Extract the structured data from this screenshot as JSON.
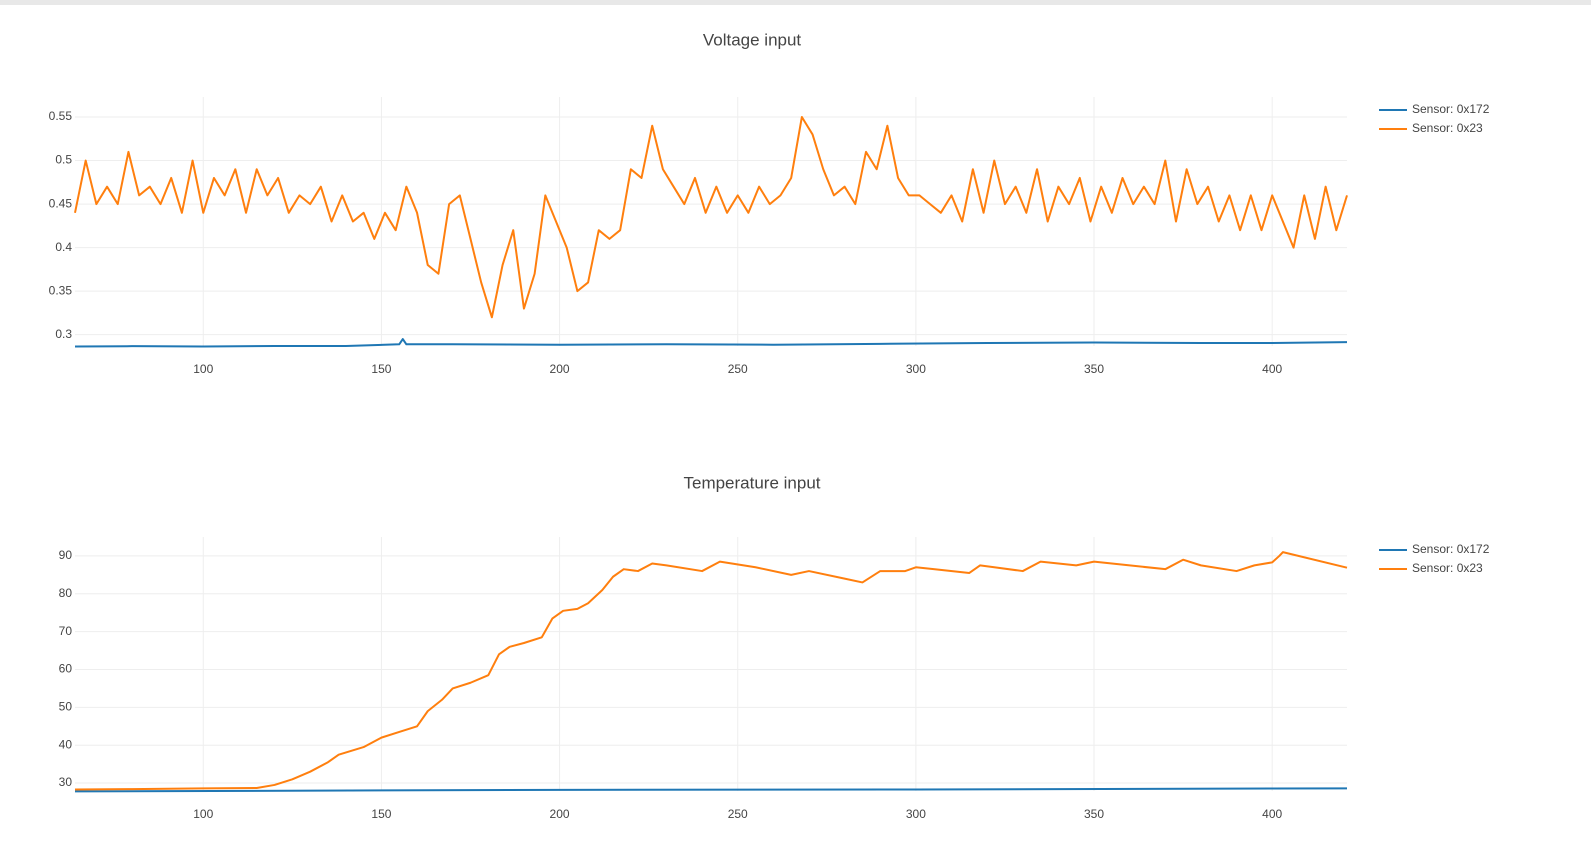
{
  "chart_data": [
    {
      "type": "line",
      "title": "Voltage input",
      "grid": true,
      "legend": "top-right",
      "xlim": [
        64,
        421
      ],
      "xticks": [
        100,
        150,
        200,
        250,
        300,
        350,
        400
      ],
      "ylim": [
        0.287,
        0.573
      ],
      "yticks": [
        0.3,
        0.35,
        0.4,
        0.45,
        0.5,
        0.55
      ],
      "series": [
        {
          "name": "Sensor: 0x172",
          "color": "#1f77b4",
          "x": [
            64,
            80,
            100,
            120,
            140,
            155,
            156,
            157,
            170,
            200,
            230,
            260,
            290,
            320,
            350,
            380,
            400,
            421
          ],
          "values": [
            0.2865,
            0.2868,
            0.2865,
            0.287,
            0.287,
            0.289,
            0.295,
            0.289,
            0.289,
            0.2885,
            0.289,
            0.2885,
            0.2895,
            0.2905,
            0.291,
            0.2905,
            0.2905,
            0.2915
          ]
        },
        {
          "name": "Sensor: 0x23",
          "color": "#ff7f0e",
          "x": [
            64,
            67,
            70,
            73,
            76,
            79,
            82,
            85,
            88,
            91,
            94,
            97,
            100,
            103,
            106,
            109,
            112,
            115,
            118,
            121,
            124,
            127,
            130,
            133,
            136,
            139,
            142,
            145,
            148,
            151,
            154,
            157,
            160,
            163,
            166,
            169,
            172,
            175,
            178,
            181,
            184,
            187,
            190,
            193,
            196,
            199,
            202,
            205,
            208,
            211,
            214,
            217,
            220,
            223,
            226,
            229,
            232,
            235,
            238,
            241,
            244,
            247,
            250,
            253,
            256,
            259,
            262,
            265,
            268,
            271,
            274,
            277,
            280,
            283,
            286,
            289,
            292,
            295,
            298,
            301,
            304,
            307,
            310,
            313,
            316,
            319,
            322,
            325,
            328,
            331,
            334,
            337,
            340,
            343,
            346,
            349,
            352,
            355,
            358,
            361,
            364,
            367,
            370,
            373,
            376,
            379,
            382,
            385,
            388,
            391,
            394,
            397,
            400,
            403,
            406,
            409,
            412,
            415,
            418,
            421
          ],
          "values": [
            0.44,
            0.5,
            0.45,
            0.47,
            0.45,
            0.51,
            0.46,
            0.47,
            0.45,
            0.48,
            0.44,
            0.5,
            0.44,
            0.48,
            0.46,
            0.49,
            0.44,
            0.49,
            0.46,
            0.48,
            0.44,
            0.46,
            0.45,
            0.47,
            0.43,
            0.46,
            0.43,
            0.44,
            0.41,
            0.44,
            0.42,
            0.47,
            0.44,
            0.38,
            0.37,
            0.45,
            0.46,
            0.41,
            0.36,
            0.32,
            0.38,
            0.42,
            0.33,
            0.37,
            0.46,
            0.43,
            0.4,
            0.35,
            0.36,
            0.42,
            0.41,
            0.42,
            0.49,
            0.48,
            0.54,
            0.49,
            0.47,
            0.45,
            0.48,
            0.44,
            0.47,
            0.44,
            0.46,
            0.44,
            0.47,
            0.45,
            0.46,
            0.48,
            0.55,
            0.53,
            0.49,
            0.46,
            0.47,
            0.45,
            0.51,
            0.49,
            0.54,
            0.48,
            0.46,
            0.46,
            0.45,
            0.44,
            0.46,
            0.43,
            0.49,
            0.44,
            0.5,
            0.45,
            0.47,
            0.44,
            0.49,
            0.43,
            0.47,
            0.45,
            0.48,
            0.43,
            0.47,
            0.44,
            0.48,
            0.45,
            0.47,
            0.45,
            0.5,
            0.43,
            0.49,
            0.45,
            0.47,
            0.43,
            0.46,
            0.42,
            0.46,
            0.42,
            0.46,
            0.43,
            0.4,
            0.46,
            0.41,
            0.47,
            0.42,
            0.46
          ]
        }
      ]
    },
    {
      "type": "line",
      "title": "Temperature input",
      "grid": true,
      "legend": "top-right",
      "xlim": [
        64,
        421
      ],
      "xticks": [
        100,
        150,
        200,
        250,
        300,
        350,
        400
      ],
      "ylim": [
        27.9,
        95
      ],
      "yticks": [
        30,
        40,
        50,
        60,
        70,
        80,
        90
      ],
      "series": [
        {
          "name": "Sensor: 0x172",
          "color": "#1f77b4",
          "x": [
            64,
            200,
            300,
            421
          ],
          "values": [
            27.8,
            28.2,
            28.3,
            28.6
          ]
        },
        {
          "name": "Sensor: 0x23",
          "color": "#ff7f0e",
          "x": [
            64,
            80,
            100,
            115,
            120,
            125,
            130,
            135,
            138,
            145,
            150,
            155,
            160,
            163,
            167,
            170,
            175,
            180,
            183,
            186,
            190,
            195,
            198,
            201,
            205,
            208,
            212,
            215,
            218,
            222,
            226,
            230,
            240,
            245,
            255,
            265,
            270,
            280,
            285,
            290,
            297,
            300,
            305,
            315,
            318,
            322,
            330,
            335,
            345,
            350,
            360,
            370,
            375,
            380,
            390,
            395,
            400,
            402,
            403,
            421
          ],
          "values": [
            28.3,
            28.4,
            28.6,
            28.7,
            29.5,
            31,
            33,
            35.5,
            37.5,
            39.5,
            42,
            43.5,
            45,
            49,
            52,
            55,
            56.5,
            58.5,
            64,
            66,
            67,
            68.5,
            73.5,
            75.5,
            76,
            77.5,
            81,
            84.5,
            86.5,
            86,
            88,
            87.5,
            86,
            88.5,
            87,
            85,
            86,
            84,
            83,
            86,
            86,
            87,
            86.5,
            85.5,
            87.5,
            87,
            86,
            88.5,
            87.5,
            88.5,
            87.5,
            86.5,
            89,
            87.5,
            86,
            87.5,
            88.3,
            90,
            91,
            86.9
          ]
        }
      ]
    }
  ]
}
